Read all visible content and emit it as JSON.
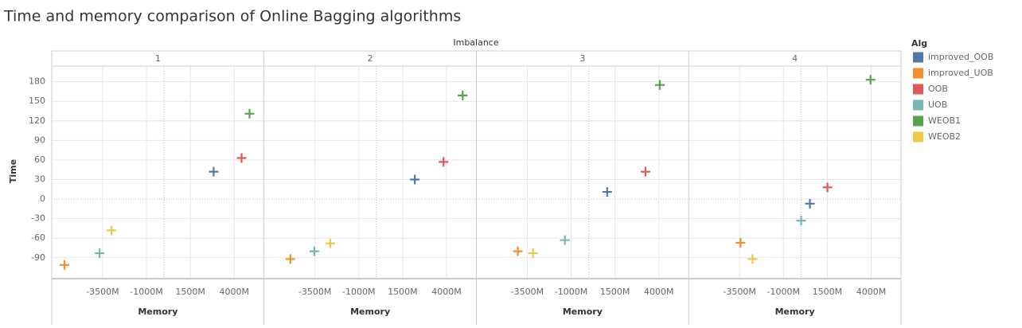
{
  "chart_data": {
    "type": "scatter",
    "title": "Time and memory comparison of Online Bagging algorithms",
    "facet_label": "Imbalance",
    "facets": [
      "1",
      "2",
      "3",
      "4"
    ],
    "x_label": "Memory",
    "y_label": "Time",
    "legend_title": "Alg",
    "xlim": [
      -6400,
      5700
    ],
    "xticks": [
      {
        "value": -3500,
        "label": "-3500M"
      },
      {
        "value": -1000,
        "label": "-1000M"
      },
      {
        "value": 1500,
        "label": "1500M"
      },
      {
        "value": 4000,
        "label": "4000M"
      }
    ],
    "ylim": [
      -122,
      204
    ],
    "yticks": [
      -90,
      -60,
      -30,
      0,
      30,
      60,
      90,
      120,
      150,
      180
    ],
    "grid": true,
    "series": [
      {
        "name": "improved_OOB",
        "color": "#4e79a7",
        "x": [
          2827,
          2191,
          1055,
          509
        ],
        "values": [
          42,
          30,
          11,
          -7
        ]
      },
      {
        "name": "improved_UOB",
        "color": "#f28e2b",
        "x": [
          -5673,
          -4900,
          -4036,
          -3445
        ],
        "values": [
          -101,
          -92,
          -80,
          -67
        ]
      },
      {
        "name": "OOB",
        "color": "#e15759",
        "x": [
          4418,
          3827,
          3236,
          1509
        ],
        "values": [
          63,
          57,
          42,
          18
        ]
      },
      {
        "name": "UOB",
        "color": "#76b7b2",
        "x": [
          -3673,
          -3536,
          -1355,
          9
        ],
        "values": [
          -83,
          -80,
          -63,
          -33
        ]
      },
      {
        "name": "WEOB1",
        "color": "#59a14f",
        "x": [
          4873,
          4918,
          4055,
          3964
        ],
        "values": [
          131,
          159,
          175,
          183
        ]
      },
      {
        "name": "WEOB2",
        "color": "#edc948",
        "x": [
          -2991,
          -2627,
          -3173,
          -2764
        ],
        "values": [
          -48,
          -68,
          -83,
          -92
        ]
      }
    ]
  }
}
